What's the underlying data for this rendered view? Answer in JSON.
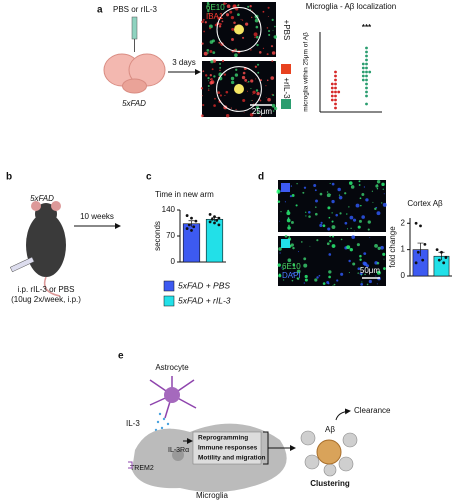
{
  "figure": {
    "a": {
      "letter": "a",
      "treatment": "PBS or rIL-3",
      "mouse": "5xFAD",
      "interval": "3 days",
      "stains": [
        "6E10",
        "IBA1"
      ],
      "conditions": [
        "+PBS",
        "+rIL-3"
      ],
      "scale_bar": "25μm"
    },
    "b": {
      "letter": "b",
      "mouse": "5xFAD",
      "interval": "10 weeks",
      "injection": [
        "i.p. rIL-3 or PBS",
        "(10ug 2x/week, i.p.)"
      ]
    },
    "c": {
      "letter": "c"
    },
    "d": {
      "letter": "d",
      "stains": [
        "6E10",
        "DAPI"
      ],
      "scale_bar": "50μm"
    },
    "e": {
      "letter": "e",
      "cell_top": "Astrocyte",
      "ligand": "IL-3",
      "receptor": "IL-3Rα",
      "other_receptor": "TREM2",
      "effects": [
        "Reprogramming",
        "Immune responses",
        "Motility and migration"
      ],
      "cell_bottom": "Microglia",
      "target": "Aβ",
      "outcome_top": "Clearance",
      "outcome_bottom": "Clustering"
    }
  },
  "chart_data": [
    {
      "type": "strip",
      "title": "Microglia - Aβ localization",
      "y_label": "microglia within 25μm of Aβ",
      "annotation": "***",
      "ylim": [
        0,
        10
      ],
      "series": [
        {
          "color": "#d62828",
          "values": [
            0.5,
            1,
            1.5,
            1.5,
            2,
            2,
            2.5,
            2.5,
            2.5,
            3,
            3,
            3.5,
            3.5,
            4,
            4.5,
            5
          ]
        },
        {
          "color": "#2a9d6f",
          "values": [
            1,
            2,
            2.5,
            3,
            3.5,
            4,
            4,
            4.5,
            4.5,
            5,
            5,
            5,
            5.5,
            5.5,
            6,
            6,
            6.5,
            7,
            7.5,
            8
          ]
        }
      ]
    },
    {
      "type": "bar",
      "title": "Time in new arm",
      "y_label": "seconds",
      "ylim": [
        0,
        140
      ],
      "yticks": [
        0,
        70,
        140
      ],
      "legend": "below",
      "series": [
        {
          "name": "5xFAD + PBS",
          "color": "#3d5af1",
          "values": [
            103
          ],
          "errors": [
            8
          ],
          "points": [
            125,
            118,
            110,
            100,
            95,
            90,
            85
          ]
        },
        {
          "name": "5xFAD + rIL-3",
          "color": "#22e0e8",
          "values": [
            115
          ],
          "errors": [
            5
          ],
          "points": [
            128,
            122,
            118,
            115,
            112,
            108,
            105,
            100
          ]
        }
      ]
    },
    {
      "type": "bar",
      "title": "Cortex Aβ",
      "y_label": "fold change",
      "ylim": [
        0,
        2.2
      ],
      "yticks": [
        0,
        1,
        2
      ],
      "series": [
        {
          "color": "#3d5af1",
          "values": [
            1.0
          ],
          "errors": [
            0.25
          ],
          "points": [
            2.0,
            1.9,
            1.2,
            0.9,
            0.6,
            0.5
          ]
        },
        {
          "color": "#22e0e8",
          "values": [
            0.75
          ],
          "errors": [
            0.15
          ],
          "points": [
            1.0,
            0.9,
            0.7,
            0.6,
            0.5
          ]
        }
      ]
    }
  ]
}
